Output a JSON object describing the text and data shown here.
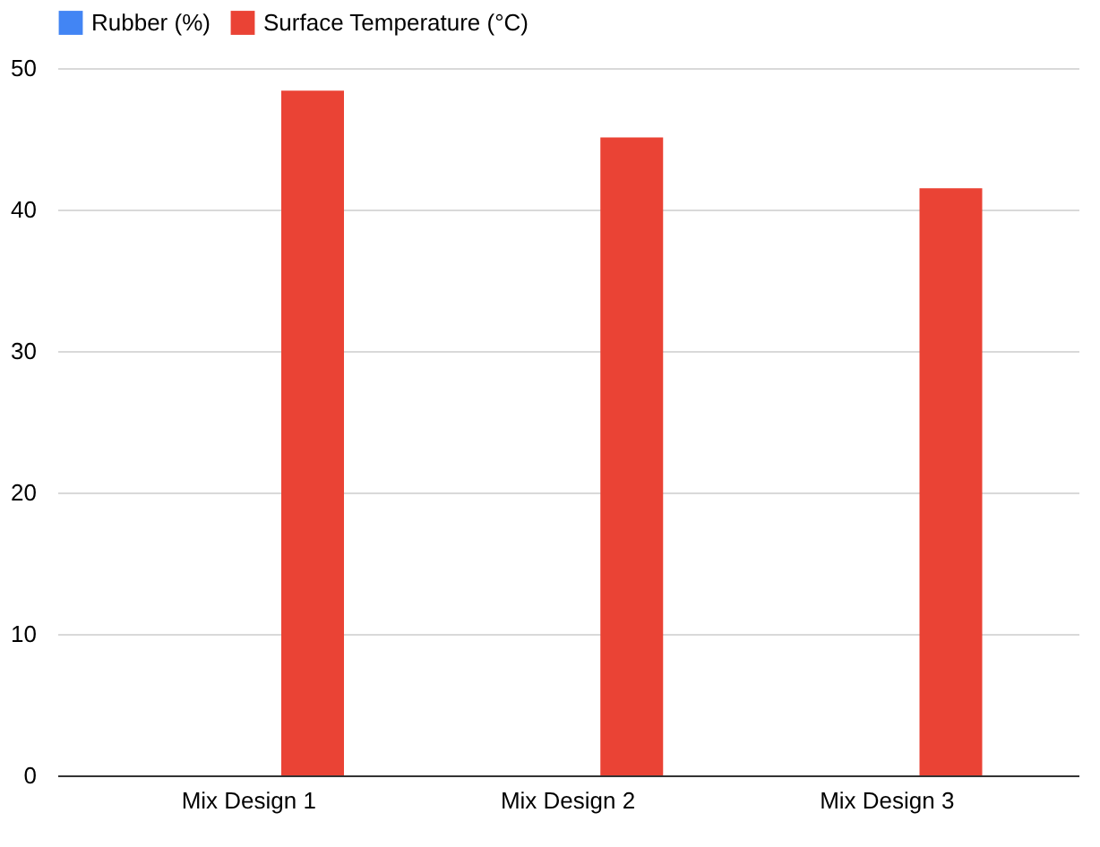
{
  "chart_data": {
    "type": "bar",
    "categories": [
      "Mix Design 1",
      "Mix Design 2",
      "Mix Design 3"
    ],
    "series": [
      {
        "name": "Rubber (%)",
        "color": "#4285f4",
        "values": [
          0,
          0,
          0
        ]
      },
      {
        "name": "Surface Temperature (°C)",
        "color": "#ea4335",
        "values": [
          48.4,
          45.1,
          41.5
        ]
      }
    ],
    "ylim": [
      0,
      50
    ],
    "yticks": [
      0,
      10,
      20,
      30,
      40,
      50
    ],
    "grid": "y",
    "legend": "top"
  }
}
